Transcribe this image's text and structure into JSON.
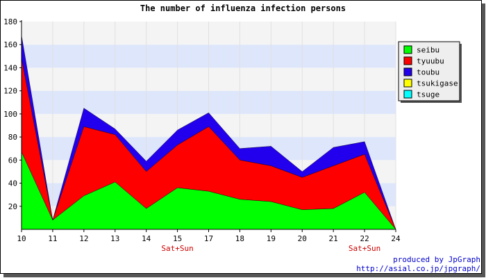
{
  "chart_data": {
    "type": "area",
    "stacked": true,
    "title": "The number of influenza infection persons",
    "x": [
      "10",
      "11",
      "12",
      "13",
      "14",
      "15",
      "17",
      "18",
      "19",
      "20",
      "21",
      "22",
      "24"
    ],
    "x_sublabels": {
      "15": "Sat+Sun",
      "22": "Sat+Sun"
    },
    "ylim": [
      0,
      180
    ],
    "yticks": [
      20,
      40,
      60,
      80,
      100,
      120,
      140,
      160,
      180
    ],
    "grid": true,
    "legend_position": "right",
    "series": [
      {
        "name": "seibu",
        "color": "#00ff00",
        "values": [
          67,
          8,
          29,
          41,
          18,
          36,
          33,
          26,
          24,
          17,
          18,
          32,
          0
        ]
      },
      {
        "name": "tyuubu",
        "color": "#ff0000",
        "values": [
          81,
          0,
          60,
          41,
          32,
          37,
          56,
          34,
          31,
          28,
          37,
          33,
          0
        ]
      },
      {
        "name": "toubu",
        "color": "#2200ee",
        "values": [
          20,
          0,
          16,
          5,
          9,
          13,
          12,
          10,
          17,
          5,
          16,
          11,
          0
        ]
      },
      {
        "name": "tsukigase",
        "color": "#ffff00",
        "values": [
          0,
          0,
          0,
          0,
          0,
          0,
          0,
          0,
          0,
          0,
          0,
          0,
          0
        ]
      },
      {
        "name": "tsuge",
        "color": "#00ffff",
        "values": [
          0,
          0,
          0,
          0,
          0,
          0,
          0,
          0,
          0,
          0,
          0,
          0,
          0
        ]
      }
    ],
    "footer": [
      "produced by JpGraph",
      "http://asial.co.jp/jpgraph/"
    ]
  }
}
